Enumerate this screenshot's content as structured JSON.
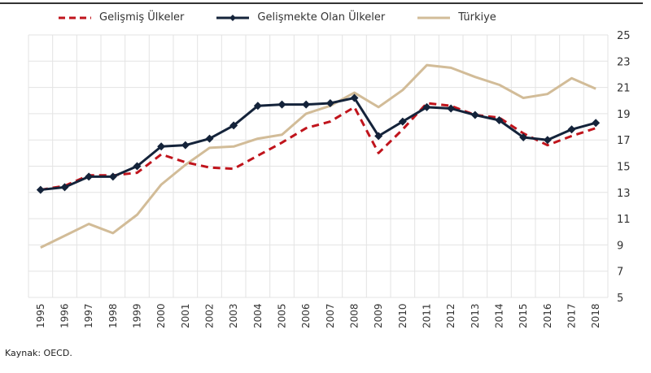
{
  "chart_data": {
    "type": "line",
    "title": "",
    "xlabel": "",
    "ylabel": "",
    "x": [
      1995,
      1996,
      1997,
      1998,
      1999,
      2000,
      2001,
      2002,
      2003,
      2004,
      2005,
      2006,
      2007,
      2008,
      2009,
      2010,
      2011,
      2012,
      2013,
      2014,
      2015,
      2016,
      2017,
      2018
    ],
    "x_tick_labels": [
      "1995",
      "1996",
      "1997",
      "1998",
      "1999",
      "2000",
      "2001",
      "2002",
      "2003",
      "2004",
      "2005",
      "2006",
      "2007",
      "2008",
      "2009",
      "2010",
      "2011",
      "2012",
      "2013",
      "2014",
      "2015",
      "2016",
      "2017",
      "2018"
    ],
    "y_ticks": [
      5,
      7,
      9,
      11,
      13,
      15,
      17,
      19,
      21,
      23,
      25
    ],
    "ylim": [
      5,
      25
    ],
    "grid": true,
    "legend_position": "top",
    "y_axis_side": "right",
    "series": [
      {
        "name": "Gelişmiş Ülkeler",
        "color": "#c0141c",
        "style": "dashed",
        "values": [
          13.2,
          13.5,
          14.3,
          14.3,
          14.5,
          15.9,
          15.3,
          14.9,
          14.8,
          15.8,
          16.8,
          17.9,
          18.4,
          19.5,
          16.0,
          17.8,
          19.8,
          19.6,
          18.9,
          18.7,
          17.5,
          16.6,
          17.3,
          17.9
        ]
      },
      {
        "name": "Gelişmekte Olan Ülkeler",
        "color": "#14233a",
        "style": "solid-markers",
        "values": [
          13.2,
          13.4,
          14.2,
          14.2,
          15.0,
          16.5,
          16.6,
          17.1,
          18.1,
          19.6,
          19.7,
          19.7,
          19.8,
          20.2,
          17.3,
          18.4,
          19.5,
          19.4,
          18.9,
          18.5,
          17.2,
          17.0,
          17.8,
          18.3
        ]
      },
      {
        "name": "Türkiye",
        "color": "#d2bc98",
        "style": "solid",
        "values": [
          8.8,
          9.7,
          10.6,
          9.9,
          11.3,
          13.6,
          15.1,
          16.4,
          16.5,
          17.1,
          17.4,
          19.0,
          19.6,
          20.6,
          19.5,
          20.8,
          22.7,
          22.5,
          21.8,
          21.2,
          20.2,
          20.5,
          21.7,
          20.9
        ]
      }
    ]
  },
  "source": "Kaynak: OECD."
}
